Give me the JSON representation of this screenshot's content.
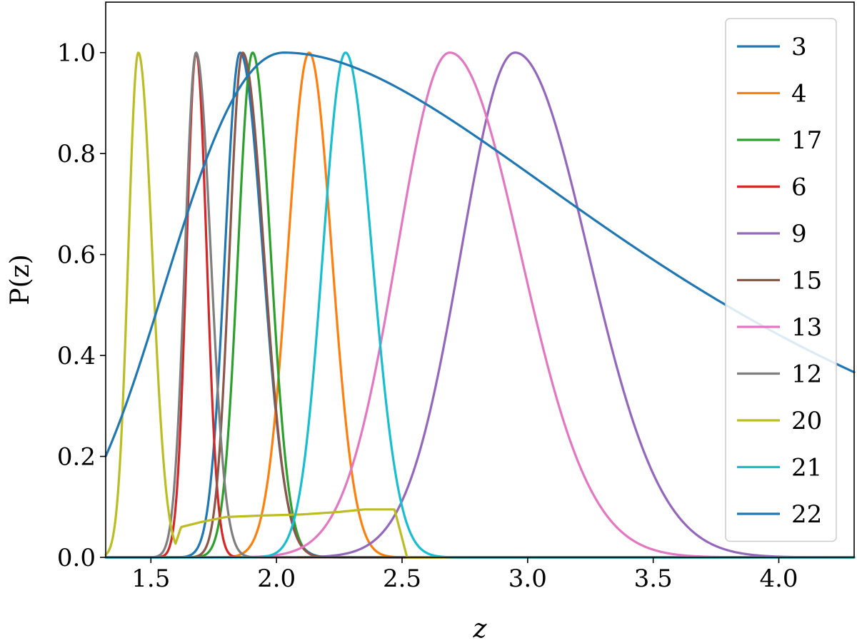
{
  "chart_data": {
    "type": "line",
    "title": "",
    "xlabel": "z",
    "ylabel": "P(z)",
    "xlim": [
      1.32,
      4.3
    ],
    "ylim": [
      0.0,
      1.1
    ],
    "xticks": [
      "1.5",
      "2.0",
      "2.5",
      "3.0",
      "3.5",
      "4.0"
    ],
    "yticks": [
      "0.0",
      "0.2",
      "0.4",
      "0.6",
      "0.8",
      "1.0"
    ],
    "grid": false,
    "legend_position": "upper-right",
    "series": [
      {
        "name": "3",
        "color": "#1f77b4",
        "shape": {
          "kind": "gauss",
          "mu": 1.855,
          "sl": 0.06,
          "sr": 0.09
        }
      },
      {
        "name": "4",
        "color": "#ff7f0e",
        "shape": {
          "kind": "gauss",
          "mu": 2.13,
          "sl": 0.085,
          "sr": 0.09
        }
      },
      {
        "name": "17",
        "color": "#2ca02c",
        "shape": {
          "kind": "gauss",
          "mu": 1.905,
          "sl": 0.058,
          "sr": 0.072
        }
      },
      {
        "name": "6",
        "color": "#d62728",
        "shape": {
          "kind": "gauss",
          "mu": 1.68,
          "sl": 0.038,
          "sr": 0.042
        }
      },
      {
        "name": "9",
        "color": "#9467bd",
        "shape": {
          "kind": "gauss",
          "mu": 2.95,
          "sl": 0.215,
          "sr": 0.29
        }
      },
      {
        "name": "15",
        "color": "#8c564b",
        "shape": {
          "kind": "gauss",
          "mu": 1.865,
          "sl": 0.052,
          "sr": 0.085
        }
      },
      {
        "name": "13",
        "color": "#e377c2",
        "shape": {
          "kind": "gauss",
          "mu": 2.69,
          "sl": 0.21,
          "sr": 0.28
        }
      },
      {
        "name": "12",
        "color": "#7f7f7f",
        "shape": {
          "kind": "gauss",
          "mu": 1.68,
          "sl": 0.044,
          "sr": 0.058
        }
      },
      {
        "name": "20",
        "color": "#bcbd22",
        "shape": {
          "kind": "bimodal",
          "mu": 1.45,
          "sl": 0.04,
          "sr": 0.055,
          "plateau": [
            [
              1.62,
              0.06
            ],
            [
              1.7,
              0.07
            ],
            [
              1.8,
              0.08
            ],
            [
              1.95,
              0.083
            ],
            [
              2.1,
              0.085
            ],
            [
              2.25,
              0.09
            ],
            [
              2.35,
              0.095
            ],
            [
              2.47,
              0.095
            ]
          ],
          "drop": 2.52
        }
      },
      {
        "name": "21",
        "color": "#17becf",
        "shape": {
          "kind": "gauss",
          "mu": 2.275,
          "sl": 0.09,
          "sr": 0.105
        }
      },
      {
        "name": "22",
        "color": "#1f77b4",
        "shape": {
          "kind": "lognormal",
          "mu": 2.03,
          "sl": 0.24,
          "sr": 0.53
        }
      }
    ]
  }
}
